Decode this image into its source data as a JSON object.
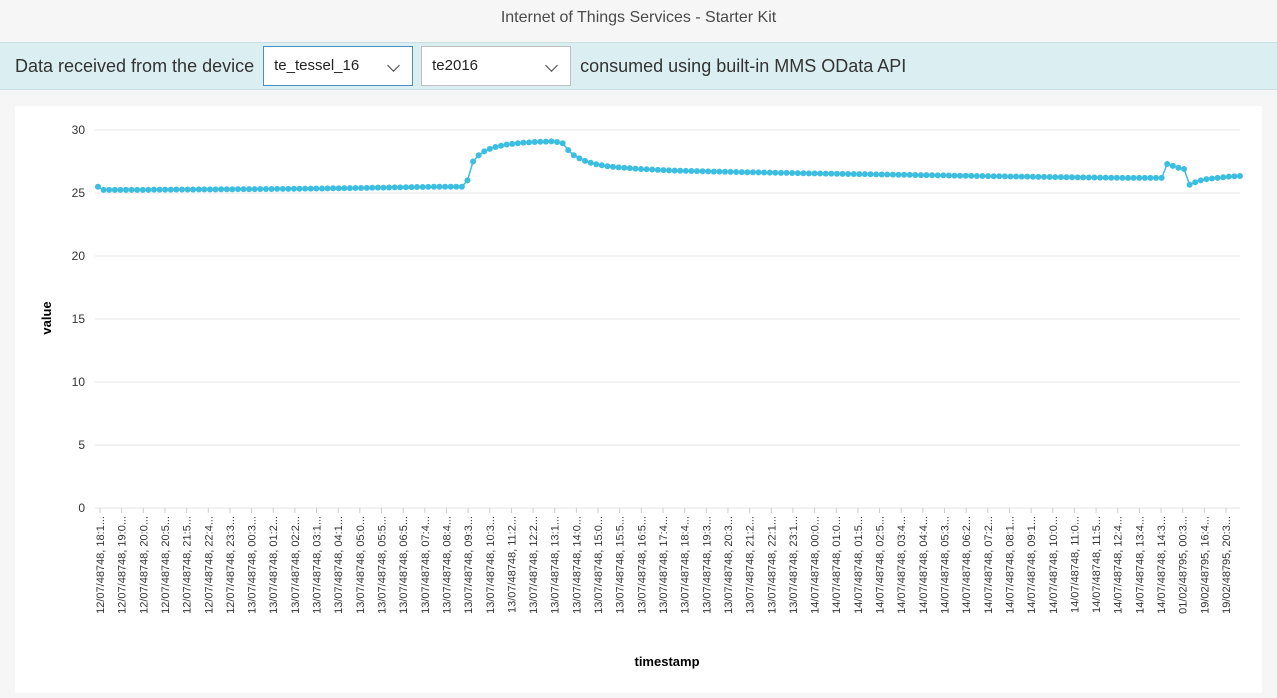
{
  "header": {
    "title": "Internet of Things Services - Starter Kit"
  },
  "toolbar": {
    "lead_text": "Data received from the device",
    "device_select": {
      "value": "te_tessel_16",
      "icon": "chevron-down-icon"
    },
    "message_select": {
      "value": "te2016",
      "icon": "chevron-down-icon"
    },
    "tail_text": "consumed using built-in MMS OData API"
  },
  "colors": {
    "series": "#3bbee0",
    "toolbar_bg": "#dbeff3",
    "grid": "#e6e6e6"
  },
  "chart_data": {
    "type": "line",
    "xlabel": "timestamp",
    "ylabel": "value",
    "ylim": [
      0,
      30
    ],
    "yticks": [
      0,
      5,
      10,
      15,
      20,
      25,
      30
    ],
    "grid": true,
    "legend": "none",
    "x_tick_labels": [
      "12/07/48748, 18:1...",
      "12/07/48748, 19:0...",
      "12/07/48748, 20:0...",
      "12/07/48748, 20:5...",
      "12/07/48748, 21:5...",
      "12/07/48748, 22:4...",
      "12/07/48748, 23:3...",
      "13/07/48748, 00:3...",
      "13/07/48748, 01:2...",
      "13/07/48748, 02:2...",
      "13/07/48748, 03:1...",
      "13/07/48748, 04:1...",
      "13/07/48748, 05:0...",
      "13/07/48748, 05:5...",
      "13/07/48748, 06:5...",
      "13/07/48748, 07:4...",
      "13/07/48748, 08:4...",
      "13/07/48748, 09:3...",
      "13/07/48748, 10:3...",
      "13/07/48748, 11:2...",
      "13/07/48748, 12:2...",
      "13/07/48748, 13:1...",
      "13/07/48748, 14:0...",
      "13/07/48748, 15:0...",
      "13/07/48748, 15:5...",
      "13/07/48748, 16:5...",
      "13/07/48748, 17:4...",
      "13/07/48748, 18:4...",
      "13/07/48748, 19:3...",
      "13/07/48748, 20:3...",
      "13/07/48748, 21:2...",
      "13/07/48748, 22:1...",
      "13/07/48748, 23:1...",
      "14/07/48748, 00:0...",
      "14/07/48748, 01:0...",
      "14/07/48748, 01:5...",
      "14/07/48748, 02:5...",
      "14/07/48748, 03:4...",
      "14/07/48748, 04:4...",
      "14/07/48748, 05:3...",
      "14/07/48748, 06:2...",
      "14/07/48748, 07:2...",
      "14/07/48748, 08:1...",
      "14/07/48748, 09:1...",
      "14/07/48748, 10:0...",
      "14/07/48748, 11:0...",
      "14/07/48748, 11:5...",
      "14/07/48748, 12:4...",
      "14/07/48748, 13:4...",
      "14/07/48748, 14:3...",
      "01/02/48795, 00:3...",
      "19/02/48795, 16:4...",
      "19/02/48795, 20:3..."
    ],
    "values": [
      25.5,
      25.25,
      25.25,
      25.25,
      25.25,
      25.25,
      25.25,
      25.25,
      25.25,
      25.25,
      25.27,
      25.27,
      25.27,
      25.27,
      25.28,
      25.28,
      25.28,
      25.28,
      25.29,
      25.29,
      25.29,
      25.29,
      25.3,
      25.3,
      25.3,
      25.31,
      25.31,
      25.31,
      25.31,
      25.32,
      25.32,
      25.32,
      25.33,
      25.33,
      25.33,
      25.34,
      25.34,
      25.35,
      25.35,
      25.36,
      25.36,
      25.37,
      25.38,
      25.38,
      25.39,
      25.39,
      25.4,
      25.4,
      25.41,
      25.42,
      25.43,
      25.43,
      25.44,
      25.45,
      25.45,
      25.46,
      25.47,
      25.48,
      25.48,
      25.49,
      25.5,
      25.5,
      25.5,
      25.5,
      25.5,
      25.5,
      26.0,
      27.5,
      28.0,
      28.3,
      28.5,
      28.65,
      28.75,
      28.85,
      28.9,
      28.95,
      29.0,
      29.02,
      29.05,
      29.07,
      29.08,
      29.1,
      29.05,
      28.95,
      28.4,
      28.0,
      27.75,
      27.55,
      27.4,
      27.28,
      27.2,
      27.12,
      27.07,
      27.03,
      27.0,
      26.97,
      26.93,
      26.9,
      26.88,
      26.86,
      26.84,
      26.82,
      26.8,
      26.78,
      26.77,
      26.76,
      26.75,
      26.74,
      26.73,
      26.72,
      26.7,
      26.7,
      26.69,
      26.68,
      26.67,
      26.66,
      26.65,
      26.65,
      26.64,
      26.63,
      26.62,
      26.61,
      26.6,
      26.6,
      26.59,
      26.58,
      26.57,
      26.56,
      26.56,
      26.55,
      26.54,
      26.54,
      26.53,
      26.52,
      26.51,
      26.51,
      26.5,
      26.5,
      26.49,
      26.48,
      26.47,
      26.47,
      26.46,
      26.45,
      26.45,
      26.44,
      26.43,
      26.42,
      26.42,
      26.41,
      26.4,
      26.4,
      26.39,
      26.38,
      26.37,
      26.37,
      26.36,
      26.35,
      26.35,
      26.34,
      26.33,
      26.33,
      26.32,
      26.31,
      26.31,
      26.3,
      26.3,
      26.29,
      26.28,
      26.28,
      26.27,
      26.26,
      26.26,
      26.25,
      26.25,
      26.24,
      26.24,
      26.23,
      26.23,
      26.22,
      26.22,
      26.21,
      26.21,
      26.2,
      26.2,
      26.2,
      26.2,
      26.2,
      26.2,
      26.2,
      26.2,
      27.3,
      27.15,
      27.0,
      26.9,
      25.65,
      25.85,
      26.0,
      26.1,
      26.15,
      26.2,
      26.25,
      26.3,
      26.32,
      26.35
    ]
  }
}
